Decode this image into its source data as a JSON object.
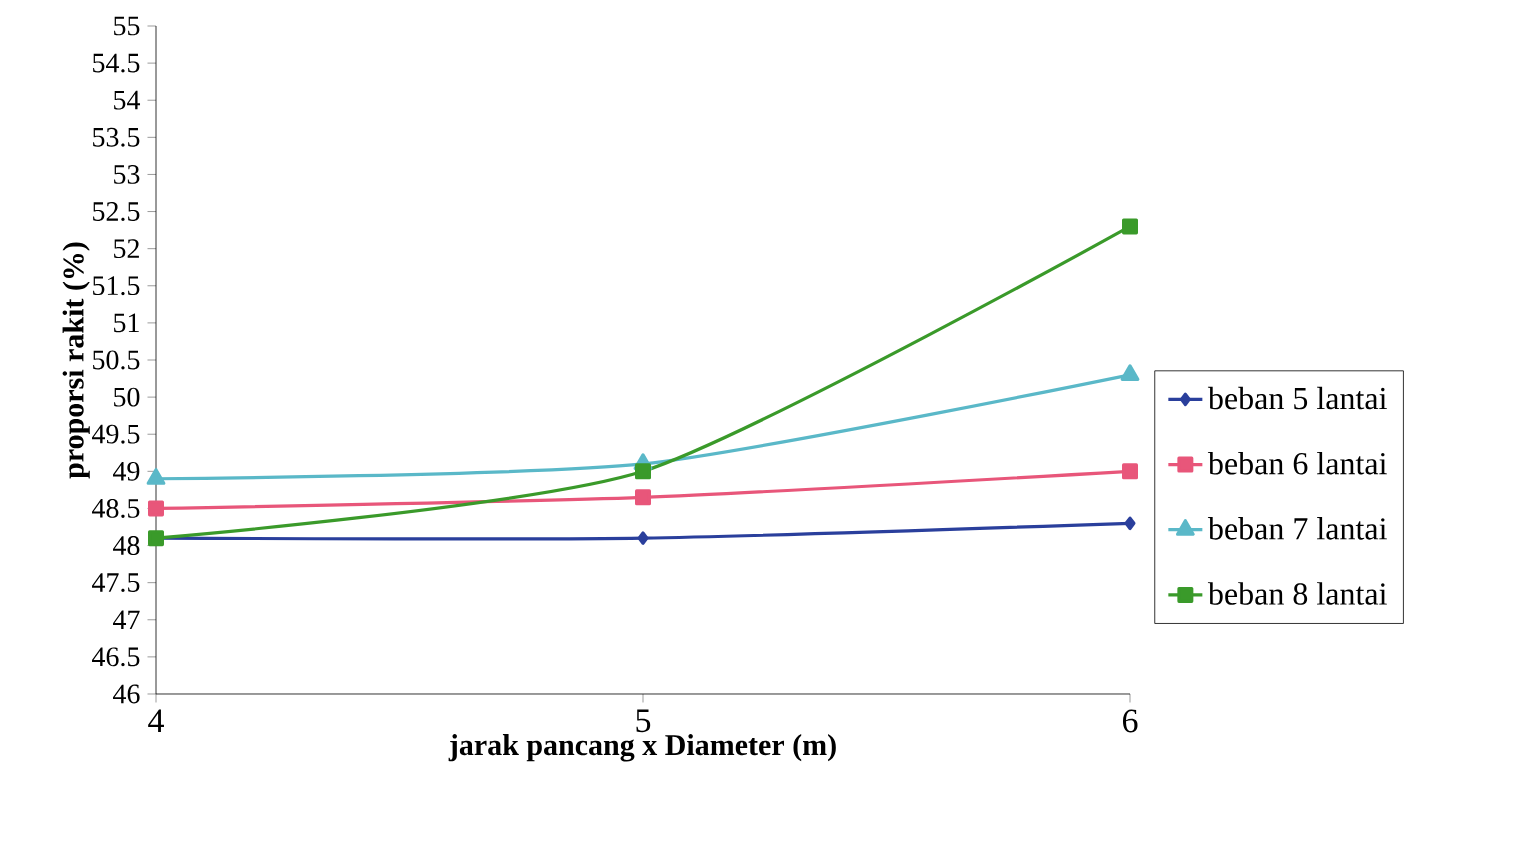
{
  "chart_data": {
    "type": "line",
    "xlabel": "jarak pancang x Diameter (m)",
    "ylabel": "proporsi rakit (%)",
    "x": [
      4,
      5,
      6
    ],
    "xlim": [
      4,
      6
    ],
    "xticks": [
      4,
      5,
      6
    ],
    "ylim": [
      46,
      55
    ],
    "yticks": [
      46,
      46.5,
      47,
      47.5,
      48,
      48.5,
      49,
      49.5,
      50,
      50.5,
      51,
      51.5,
      52,
      52.5,
      53,
      53.5,
      54,
      54.5,
      55
    ],
    "grid": false,
    "legend": "right",
    "line_style": "solid",
    "series": [
      {
        "name": "beban 5 lantai",
        "color": "#2a3f9c",
        "marker": "diamond",
        "values": [
          48.1,
          48.1,
          48.3
        ]
      },
      {
        "name": "beban 6 lantai",
        "color": "#e8567a",
        "marker": "square",
        "values": [
          48.5,
          48.65,
          49.0
        ]
      },
      {
        "name": "beban 7 lantai",
        "color": "#5ab8c8",
        "marker": "triangle",
        "values": [
          48.9,
          49.1,
          50.3
        ]
      },
      {
        "name": "beban 8 lantai",
        "color": "#3a9a2a",
        "marker": "square",
        "values": [
          48.1,
          49.0,
          52.3
        ]
      }
    ]
  }
}
